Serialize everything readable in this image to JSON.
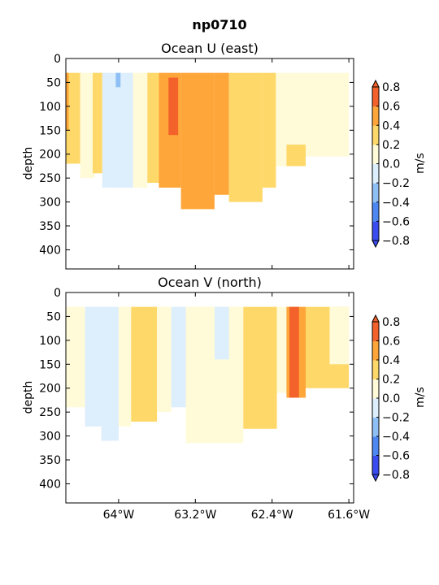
{
  "figure": {
    "suptitle": "np0710"
  },
  "chart_data": [
    {
      "type": "heatmap",
      "title": "Ocean U (east)",
      "xlabel": "",
      "ylabel": "depth",
      "xlim": [
        -64.55,
        -61.55
      ],
      "ylim": [
        440,
        0
      ],
      "x_ticks": [
        -64.0,
        -63.2,
        -62.4,
        -61.6
      ],
      "x_tick_labels": [
        "64°W",
        "63.2°W",
        "62.4°W",
        "61.6°W"
      ],
      "y_ticks": [
        0,
        50,
        100,
        150,
        200,
        250,
        300,
        350,
        400
      ],
      "y_tick_labels": [
        "0",
        "50",
        "100",
        "150",
        "200",
        "250",
        "300",
        "350",
        "400"
      ],
      "show_x_tick_labels": false,
      "colorbar": {
        "label": "m/s",
        "levels": [
          -0.8,
          -0.6,
          -0.4,
          -0.2,
          0.0,
          0.2,
          0.4,
          0.6,
          0.8
        ],
        "tick_labels": [
          "−0.8",
          "−0.6",
          "−0.4",
          "−0.2",
          "0.0",
          "0.2",
          "0.4",
          "0.6",
          "0.8"
        ],
        "colors": [
          "#3a4cf0",
          "#4f87f2",
          "#8fc0f5",
          "#ddeefc",
          "#fffbd9",
          "#ffd86a",
          "#ffa63a",
          "#f2622a"
        ],
        "extend": "both"
      },
      "regions": [
        {
          "x0": -64.55,
          "x1": -64.4,
          "ytop": 30,
          "ybot": 220,
          "value": 0.3
        },
        {
          "x0": -64.55,
          "x1": -64.52,
          "ytop": 30,
          "ybot": 150,
          "value": 0.5
        },
        {
          "x0": -64.4,
          "x1": -64.25,
          "ytop": 30,
          "ybot": 250,
          "value": 0.1
        },
        {
          "x0": -64.27,
          "x1": -64.17,
          "ytop": 30,
          "ybot": 240,
          "value": 0.3
        },
        {
          "x0": -64.17,
          "x1": -64.12,
          "ytop": 30,
          "ybot": 270,
          "value": -0.1
        },
        {
          "x0": -64.12,
          "x1": -63.85,
          "ytop": 30,
          "ybot": 270,
          "value": -0.1
        },
        {
          "x0": -64.03,
          "x1": -63.98,
          "ytop": 30,
          "ybot": 60,
          "value": -0.3
        },
        {
          "x0": -63.85,
          "x1": -63.7,
          "ytop": 30,
          "ybot": 270,
          "value": 0.1
        },
        {
          "x0": -63.7,
          "x1": -63.58,
          "ytop": 30,
          "ybot": 260,
          "value": 0.3
        },
        {
          "x0": -63.58,
          "x1": -63.35,
          "ytop": 30,
          "ybot": 270,
          "value": 0.5
        },
        {
          "x0": -63.35,
          "x1": -63.0,
          "ytop": 30,
          "ybot": 315,
          "value": 0.5
        },
        {
          "x0": -63.48,
          "x1": -63.38,
          "ytop": 40,
          "ybot": 160,
          "value": 0.7
        },
        {
          "x0": -63.0,
          "x1": -62.85,
          "ytop": 30,
          "ybot": 285,
          "value": 0.5
        },
        {
          "x0": -62.85,
          "x1": -62.5,
          "ytop": 30,
          "ybot": 300,
          "value": 0.3
        },
        {
          "x0": -62.5,
          "x1": -62.36,
          "ytop": 30,
          "ybot": 270,
          "value": 0.3
        },
        {
          "x0": -62.36,
          "x1": -62.05,
          "ytop": 30,
          "ybot": 225,
          "value": 0.1
        },
        {
          "x0": -62.25,
          "x1": -62.05,
          "ytop": 180,
          "ybot": 225,
          "value": 0.3
        },
        {
          "x0": -62.05,
          "x1": -61.6,
          "ytop": 30,
          "ybot": 205,
          "value": 0.1
        }
      ]
    },
    {
      "type": "heatmap",
      "title": "Ocean V (north)",
      "xlabel": "",
      "ylabel": "depth",
      "xlim": [
        -64.55,
        -61.55
      ],
      "ylim": [
        440,
        0
      ],
      "x_ticks": [
        -64.0,
        -63.2,
        -62.4,
        -61.6
      ],
      "x_tick_labels": [
        "64°W",
        "63.2°W",
        "62.4°W",
        "61.6°W"
      ],
      "y_ticks": [
        0,
        50,
        100,
        150,
        200,
        250,
        300,
        350,
        400
      ],
      "y_tick_labels": [
        "0",
        "50",
        "100",
        "150",
        "200",
        "250",
        "300",
        "350",
        "400"
      ],
      "show_x_tick_labels": true,
      "colorbar": {
        "label": "m/s",
        "levels": [
          -0.8,
          -0.6,
          -0.4,
          -0.2,
          0.0,
          0.2,
          0.4,
          0.6,
          0.8
        ],
        "tick_labels": [
          "−0.8",
          "−0.6",
          "−0.4",
          "−0.2",
          "0.0",
          "0.2",
          "0.4",
          "0.6",
          "0.8"
        ],
        "colors": [
          "#3a4cf0",
          "#4f87f2",
          "#8fc0f5",
          "#ddeefc",
          "#fffbd9",
          "#ffd86a",
          "#ffa63a",
          "#f2622a"
        ],
        "extend": "both"
      },
      "regions": [
        {
          "x0": -64.55,
          "x1": -64.35,
          "ytop": 30,
          "ybot": 240,
          "value": 0.1
        },
        {
          "x0": -64.35,
          "x1": -64.18,
          "ytop": 30,
          "ybot": 280,
          "value": -0.1
        },
        {
          "x0": -64.18,
          "x1": -64.0,
          "ytop": 30,
          "ybot": 310,
          "value": -0.1
        },
        {
          "x0": -64.0,
          "x1": -63.87,
          "ytop": 30,
          "ybot": 280,
          "value": 0.1
        },
        {
          "x0": -63.87,
          "x1": -63.6,
          "ytop": 30,
          "ybot": 270,
          "value": 0.3
        },
        {
          "x0": -63.6,
          "x1": -63.45,
          "ytop": 30,
          "ybot": 250,
          "value": 0.1
        },
        {
          "x0": -63.45,
          "x1": -63.3,
          "ytop": 30,
          "ybot": 240,
          "value": -0.1
        },
        {
          "x0": -63.3,
          "x1": -62.7,
          "ytop": 30,
          "ybot": 315,
          "value": 0.1
        },
        {
          "x0": -63.0,
          "x1": -62.85,
          "ytop": 30,
          "ybot": 140,
          "value": -0.1
        },
        {
          "x0": -62.7,
          "x1": -62.35,
          "ytop": 30,
          "ybot": 285,
          "value": 0.3
        },
        {
          "x0": -62.35,
          "x1": -62.25,
          "ytop": 30,
          "ybot": 210,
          "value": 0.1
        },
        {
          "x0": -62.25,
          "x1": -62.05,
          "ytop": 30,
          "ybot": 220,
          "value": 0.5
        },
        {
          "x0": -62.22,
          "x1": -62.12,
          "ytop": 30,
          "ybot": 220,
          "value": 0.7
        },
        {
          "x0": -62.05,
          "x1": -61.6,
          "ytop": 30,
          "ybot": 200,
          "value": 0.3
        },
        {
          "x0": -61.8,
          "x1": -61.6,
          "ytop": 30,
          "ybot": 150,
          "value": 0.1
        }
      ]
    }
  ]
}
